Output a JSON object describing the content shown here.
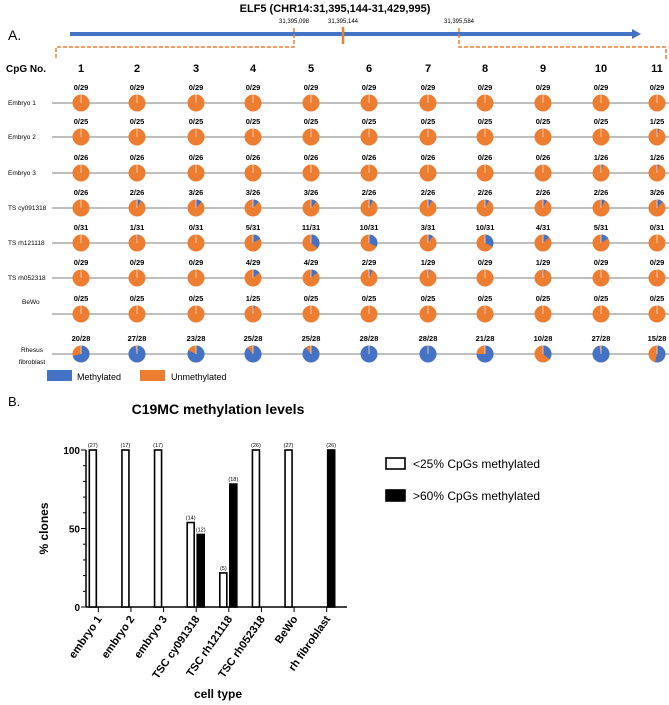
{
  "colors": {
    "methylated": "#4472C4",
    "unmethylated": "#ED7D31",
    "line": "#555555"
  },
  "panel_a": {
    "label": "A.",
    "gene_title": "ELF5 (CHR14:31,395,144-31,429,995)",
    "positions": [
      "31,395,098",
      "31,395,144",
      "31,395,584"
    ],
    "cpg_header": "CpG No.",
    "cpg_numbers": [
      "1",
      "2",
      "3",
      "4",
      "5",
      "6",
      "7",
      "8",
      "9",
      "10",
      "11"
    ],
    "rows": [
      {
        "name": "Embryo 1",
        "values": [
          "0/29",
          "0/29",
          "0/29",
          "0/29",
          "0/29",
          "0/29",
          "0/29",
          "0/29",
          "0/29",
          "0/29",
          "0/29"
        ]
      },
      {
        "name": "Embryo 2",
        "values": [
          "0/25",
          "0/25",
          "0/25",
          "0/25",
          "0/25",
          "0/25",
          "0/25",
          "0/25",
          "0/25",
          "0/25",
          "1/25"
        ]
      },
      {
        "name": "Embryo 3",
        "values": [
          "0/26",
          "0/26",
          "0/26",
          "0/26",
          "0/26",
          "0/26",
          "0/26",
          "0/26",
          "0/26",
          "1/26",
          "1/26"
        ]
      },
      {
        "name": "TS cy091318",
        "values": [
          "0/26",
          "2/26",
          "3/26",
          "3/26",
          "3/26",
          "2/26",
          "2/26",
          "2/26",
          "2/26",
          "2/26",
          "3/26"
        ]
      },
      {
        "name": "TS rh121118",
        "values": [
          "0/31",
          "1/31",
          "0/31",
          "5/31",
          "11/31",
          "10/31",
          "3/31",
          "10/31",
          "4/31",
          "5/31",
          "0/31"
        ]
      },
      {
        "name": "TS rh052318",
        "values": [
          "0/29",
          "0/29",
          "0/29",
          "4/29",
          "4/29",
          "2/29",
          "1/29",
          "0/29",
          "1/29",
          "0/29",
          "0/29"
        ]
      },
      {
        "name": "BeWo",
        "values": [
          "0/25",
          "0/25",
          "0/25",
          "1/25",
          "0/25",
          "0/25",
          "0/25",
          "0/25",
          "0/25",
          "0/25",
          "0/25"
        ]
      },
      {
        "name": "Rhesus fibroblast",
        "name_lines": [
          "Rhesus",
          "fibroblast"
        ],
        "values": [
          "20/28",
          "27/28",
          "23/28",
          "25/28",
          "25/28",
          "28/28",
          "28/28",
          "21/28",
          "10/28",
          "27/28",
          "15/28"
        ]
      }
    ],
    "legend": {
      "methylated": "Methylated",
      "unmethylated": "Unmethylated"
    }
  },
  "chart_data": {
    "type": "bar",
    "panel_label": "B.",
    "title": "C19MC methylation levels",
    "xlabel": "cell type",
    "ylabel": "% clones",
    "ylim": [
      0,
      100
    ],
    "yticks": [
      "0",
      "50",
      "100"
    ],
    "legend_position": "right",
    "categories": [
      "embryo 1",
      "embryo 2",
      "embryo 3",
      "TSC cy091318",
      "TSC rh121118",
      "TSC rh052318",
      "BeWo",
      "rh fibroblast"
    ],
    "series": [
      {
        "name": "<25% CpGs methylated",
        "color": "#FFFFFF",
        "values": [
          100,
          100,
          100,
          53.8,
          21.7,
          100,
          100,
          0
        ],
        "labels": [
          "(27)",
          "(17)",
          "(17)",
          "(14)",
          "(5)",
          "(26)",
          "(27)",
          ""
        ]
      },
      {
        "name": ">60% CpGs methylated",
        "color": "#000000",
        "values": [
          0,
          0,
          0,
          46.2,
          78.3,
          0,
          0,
          100
        ],
        "labels": [
          "",
          "",
          "",
          "(12)",
          "(18)",
          "",
          "",
          "(26)"
        ]
      }
    ]
  }
}
